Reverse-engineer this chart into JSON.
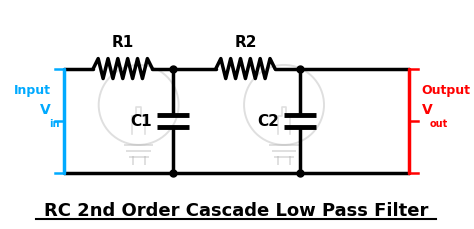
{
  "title": "RC 2nd Order Cascade Low Pass Filter",
  "title_fontsize": 13,
  "title_color": "#000000",
  "bg_color": "#ffffff",
  "line_color": "#000000",
  "line_width": 2.5,
  "input_color": "#00aaff",
  "output_color": "#ff0000",
  "ghost_color": "#b0b0b0",
  "R1_label": "R1",
  "R2_label": "R2",
  "C1_label": "C1",
  "C2_label": "C2",
  "input_label1": "Input",
  "input_label2": "V",
  "input_sub": "in",
  "output_label1": "Output",
  "output_label2": "V",
  "output_sub": "out",
  "figsize": [
    4.74,
    2.3
  ],
  "dpi": 100
}
